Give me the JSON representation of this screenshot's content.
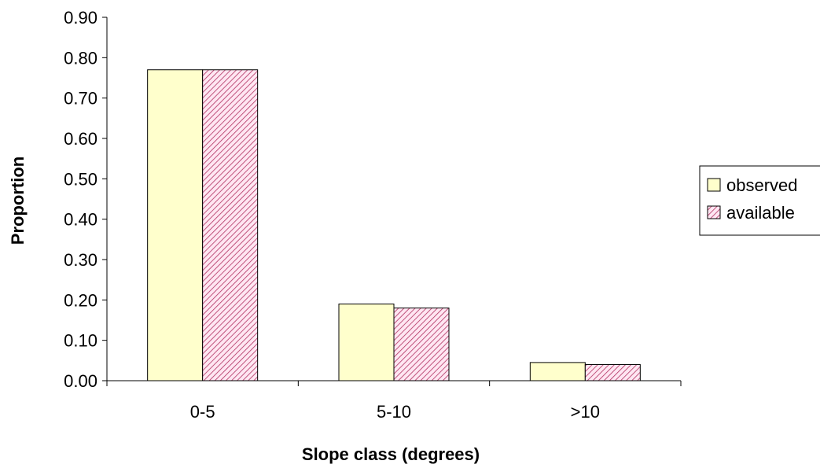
{
  "chart_data": {
    "type": "bar",
    "title": "",
    "xlabel": "Slope class (degrees)",
    "ylabel": "Proportion",
    "categories": [
      "0-5",
      "5-10",
      ">10"
    ],
    "series": [
      {
        "name": "observed",
        "values": [
          0.77,
          0.19,
          0.045
        ],
        "color": "#ffffcc",
        "pattern": "solid"
      },
      {
        "name": "available",
        "values": [
          0.77,
          0.18,
          0.04
        ],
        "color": "#ff99cc",
        "pattern": "diagonal-hatch"
      }
    ],
    "ylim": [
      0,
      0.9
    ],
    "yticks": [
      "0.00",
      "0.10",
      "0.20",
      "0.30",
      "0.40",
      "0.50",
      "0.60",
      "0.70",
      "0.80",
      "0.90"
    ],
    "grid": false,
    "legend": "right",
    "bar_outline_color": "#000000"
  }
}
